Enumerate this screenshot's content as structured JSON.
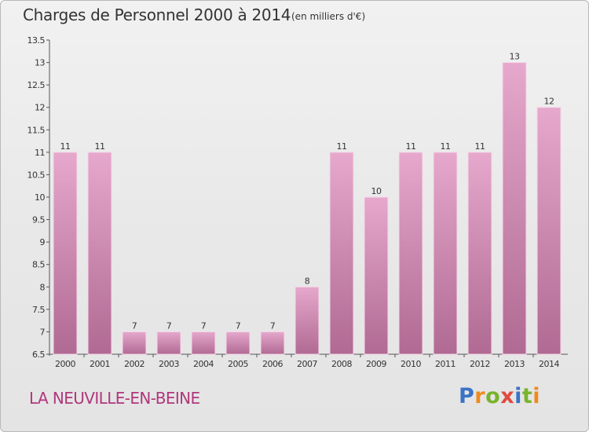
{
  "header": {
    "title": "Charges de Personnel 2000 à 2014",
    "subtitle": "(en milliers d'€)"
  },
  "footer": {
    "location": "LA NEUVILLE-EN-BEINE",
    "logo": "Proxiti"
  },
  "colors": {
    "bar_light": "#e6a8cc",
    "bar_dark": "#b06a93",
    "text": "#333333",
    "location": "#b0377c"
  },
  "chart_data": {
    "type": "bar",
    "title": "Charges de Personnel 2000 à 2014",
    "subtitle": "(en milliers d'€)",
    "categories": [
      "2000",
      "2001",
      "2002",
      "2003",
      "2004",
      "2005",
      "2006",
      "2007",
      "2008",
      "2009",
      "2010",
      "2011",
      "2012",
      "2013",
      "2014"
    ],
    "values": [
      11,
      11,
      7,
      7,
      7,
      7,
      7,
      8,
      11,
      10,
      11,
      11,
      11,
      13,
      12
    ],
    "data_labels": [
      "11",
      "11",
      "7",
      "7",
      "7",
      "7",
      "7",
      "8",
      "11",
      "10",
      "11",
      "11",
      "11",
      "13",
      "12"
    ],
    "ylim": [
      6.5,
      13.5
    ],
    "yticks": [
      6.5,
      7,
      7.5,
      8,
      8.5,
      9,
      9.5,
      10,
      10.5,
      11,
      11.5,
      12,
      12.5,
      13,
      13.5
    ],
    "ytick_labels": [
      "6.5",
      "7",
      "7.5",
      "8",
      "8.5",
      "9",
      "9.5",
      "10",
      "10.5",
      "11",
      "11.5",
      "12",
      "12.5",
      "13",
      "13.5"
    ],
    "grid": false,
    "legend": "none"
  }
}
